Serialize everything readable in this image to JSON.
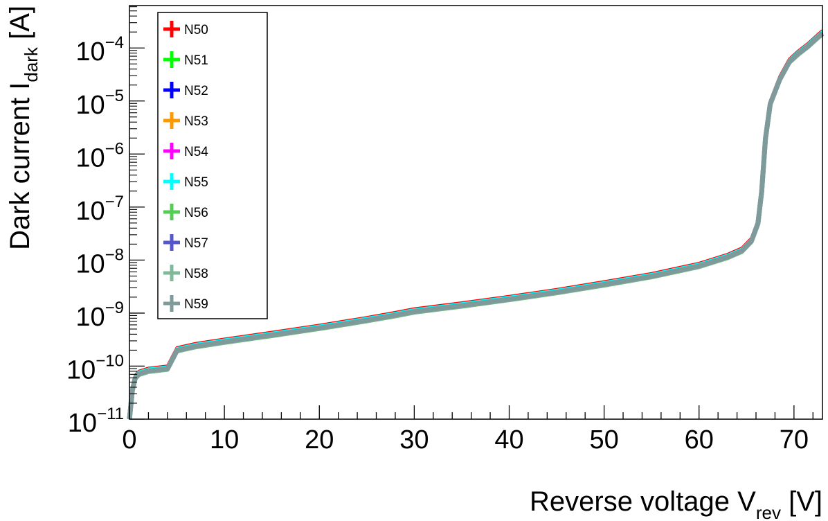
{
  "chart_data": {
    "type": "line",
    "title": "",
    "xlabel": {
      "main": "Reverse voltage V",
      "sub": "rev",
      "unit": " [V]"
    },
    "ylabel": {
      "main": "Dark current I",
      "sub": "dark",
      "unit": " [A]"
    },
    "xlim": [
      0,
      73
    ],
    "ylim_log10": [
      -11,
      -3.2
    ],
    "yscale": "log",
    "grid": false,
    "legend_position": "top-left",
    "x_ticks": [
      {
        "value": 0,
        "label": "0"
      },
      {
        "value": 10,
        "label": "10"
      },
      {
        "value": 20,
        "label": "20"
      },
      {
        "value": 30,
        "label": "30"
      },
      {
        "value": 40,
        "label": "40"
      },
      {
        "value": 50,
        "label": "50"
      },
      {
        "value": 60,
        "label": "60"
      },
      {
        "value": 70,
        "label": "70"
      }
    ],
    "y_ticks": [
      {
        "exp": -11,
        "base": "10",
        "power": "−11"
      },
      {
        "exp": -10,
        "base": "10",
        "power": "−10"
      },
      {
        "exp": -9,
        "base": "10",
        "power": "−9"
      },
      {
        "exp": -8,
        "base": "10",
        "power": "−8"
      },
      {
        "exp": -7,
        "base": "10",
        "power": "−7"
      },
      {
        "exp": -6,
        "base": "10",
        "power": "−6"
      },
      {
        "exp": -5,
        "base": "10",
        "power": "−5"
      },
      {
        "exp": -4,
        "base": "10",
        "power": "−4"
      }
    ],
    "base_curve": {
      "x": [
        0.0,
        0.3,
        0.6,
        1.0,
        2.0,
        4.0,
        5.0,
        7.0,
        10,
        15,
        20,
        25,
        28,
        30,
        35,
        40,
        45,
        50,
        55,
        60,
        63,
        64.5,
        65.5,
        66.2,
        66.6,
        67.0,
        67.5,
        68.5,
        69.5,
        70.5,
        71.5,
        72.5,
        73.0
      ],
      "y": [
        1e-11,
        3.5e-11,
        6e-11,
        7.2e-11,
        8.2e-11,
        9e-11,
        2e-10,
        2.4e-10,
        2.9e-10,
        3.9e-10,
        5.3e-10,
        7.4e-10,
        9.2e-10,
        1.08e-09,
        1.4e-09,
        1.85e-09,
        2.5e-09,
        3.5e-09,
        5e-09,
        7.8e-09,
        1.15e-08,
        1.5e-08,
        2.3e-08,
        5e-08,
        2e-07,
        2e-06,
        9e-06,
        2.6e-05,
        5.5e-05,
        8e-05,
        0.00011,
        0.00016,
        0.00019
      ]
    },
    "series": [
      {
        "name": "N50",
        "color": "#ff0000",
        "scale": 1.12
      },
      {
        "name": "N51",
        "color": "#00ff00",
        "scale": 0.95
      },
      {
        "name": "N52",
        "color": "#0000ff",
        "scale": 1.04
      },
      {
        "name": "N53",
        "color": "#ff9900",
        "scale": 1.0
      },
      {
        "name": "N54",
        "color": "#ff00ff",
        "scale": 1.02
      },
      {
        "name": "N55",
        "color": "#00ffff",
        "scale": 1.08
      },
      {
        "name": "N56",
        "color": "#55cc55",
        "scale": 0.92
      },
      {
        "name": "N57",
        "color": "#5555cc",
        "scale": 0.98
      },
      {
        "name": "N58",
        "color": "#7fb99a",
        "scale": 0.97
      },
      {
        "name": "N59",
        "color": "#7f9a9a",
        "scale": 0.99
      }
    ]
  }
}
